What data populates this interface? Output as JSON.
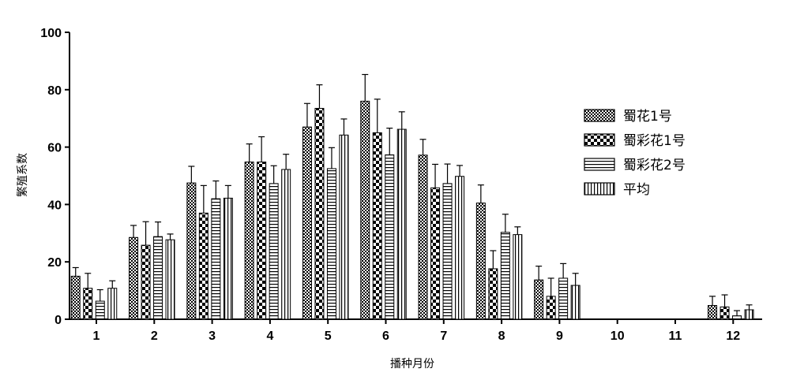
{
  "chart_data": {
    "type": "bar",
    "title": "",
    "xlabel": "播种月份",
    "ylabel": "繁殖系数",
    "ylim": [
      0,
      100
    ],
    "yticks": [
      0,
      20,
      40,
      60,
      80,
      100
    ],
    "categories": [
      "1",
      "2",
      "3",
      "4",
      "5",
      "6",
      "7",
      "8",
      "9",
      "10",
      "11",
      "12"
    ],
    "legend_position": "right",
    "error_bars": true,
    "series": [
      {
        "name": "蜀花1号",
        "pattern": "checker-fine",
        "values": [
          15,
          28.5,
          47.5,
          54.8,
          67,
          76,
          57.2,
          40.5,
          13.7,
          0,
          0,
          4.8
        ],
        "errors": [
          3,
          4.2,
          5.8,
          6.3,
          8.2,
          9.3,
          5.5,
          6.3,
          4.8,
          0,
          0,
          3.2
        ]
      },
      {
        "name": "蜀彩花1号",
        "pattern": "checker-coarse",
        "values": [
          10.8,
          25.8,
          37,
          54.8,
          73.5,
          65,
          45.8,
          17.6,
          8,
          0,
          0,
          4.3
        ],
        "errors": [
          5.2,
          8.2,
          9.6,
          8.8,
          8.2,
          11.7,
          8.2,
          6.3,
          6.3,
          0,
          0,
          4.2
        ]
      },
      {
        "name": "蜀彩花2号",
        "pattern": "horizontal-lines",
        "values": [
          6.3,
          28.8,
          42,
          47.3,
          52.5,
          57.3,
          47.3,
          30.3,
          14.3,
          0,
          0,
          1.2
        ],
        "errors": [
          4,
          5.1,
          6.2,
          6.2,
          7.3,
          9.3,
          6.8,
          6.3,
          5.1,
          0,
          0,
          1.8
        ]
      },
      {
        "name": "平均",
        "pattern": "vertical-lines",
        "values": [
          10.8,
          27.7,
          42.2,
          52.2,
          64.2,
          66.2,
          49.8,
          29.5,
          11.8,
          0,
          0,
          3.3
        ],
        "errors": [
          2.6,
          2,
          4.4,
          5.3,
          5.6,
          6.1,
          3.8,
          2.7,
          4.2,
          0,
          0,
          1.7
        ]
      }
    ]
  }
}
